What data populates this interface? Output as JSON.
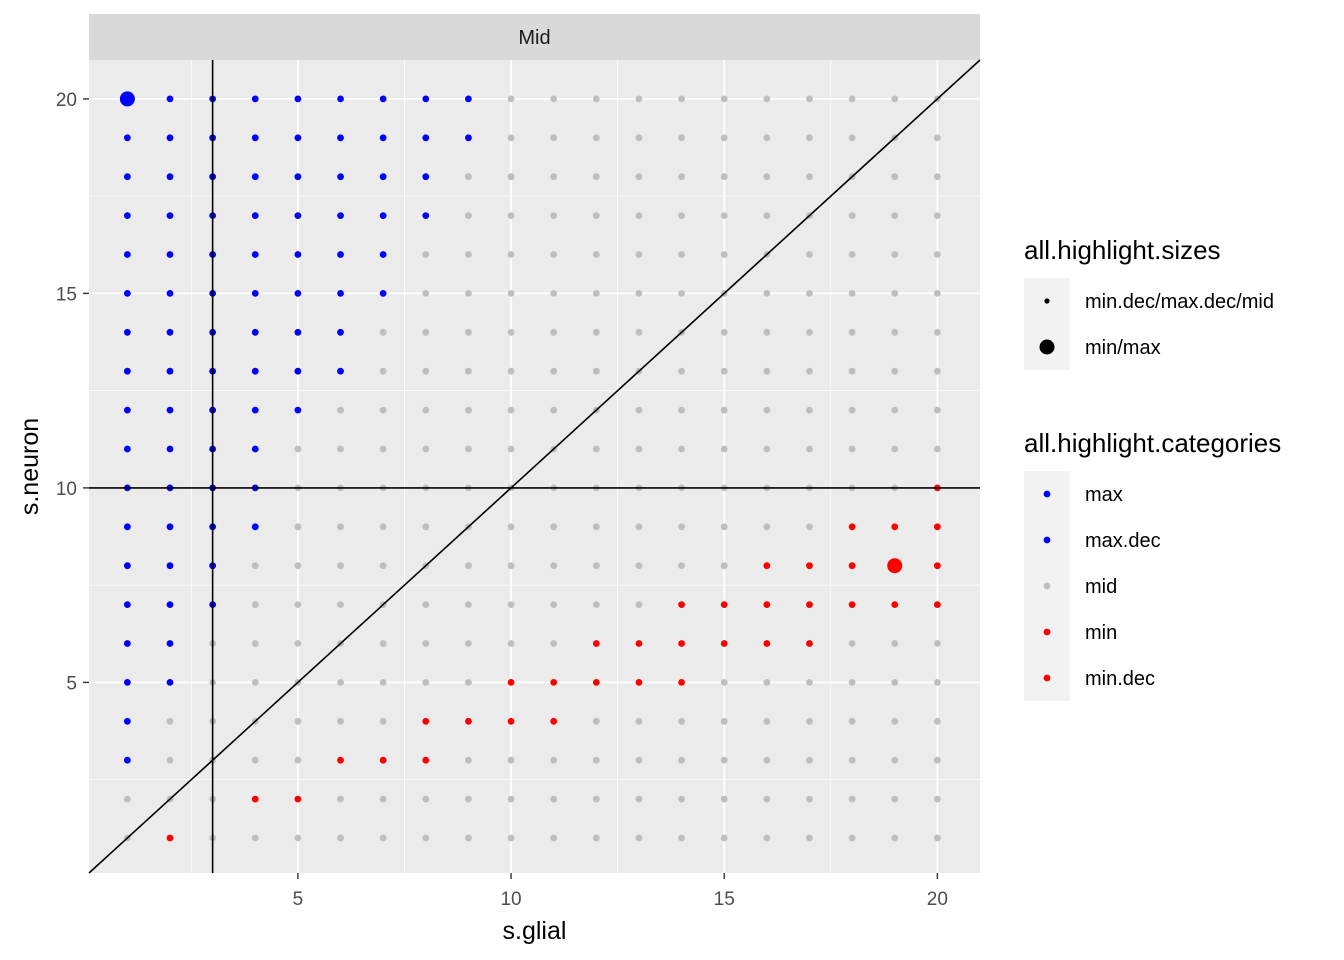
{
  "chart_data": {
    "type": "scatter",
    "facet_label": "Mid",
    "xlabel": "s.glial",
    "ylabel": "s.neuron",
    "xlim": [
      0.1,
      21
    ],
    "ylim": [
      0.1,
      21
    ],
    "x_ticks": [
      5,
      10,
      15,
      20
    ],
    "y_ticks": [
      5,
      10,
      15,
      20
    ],
    "grid": true,
    "reference_lines": {
      "vertical_x": 3,
      "horizontal_y": 10,
      "diagonal": "y = x"
    },
    "grid_range": {
      "x_min": 1,
      "x_max": 20,
      "y_min": 1,
      "y_max": 20
    },
    "default_category": "mid",
    "max_columns_by_row": {
      "20": 9,
      "19": 9,
      "18": 8,
      "17": 8,
      "16": 7,
      "15": 7,
      "14": 6,
      "13": 6,
      "12": 5,
      "11": 4,
      "10": 4,
      "9": 4,
      "8": 3,
      "7": 3,
      "6": 2,
      "5": 2,
      "4": 1,
      "3": 1
    },
    "min_points": [
      [
        2,
        1
      ],
      [
        4,
        2
      ],
      [
        5,
        2
      ],
      [
        6,
        3
      ],
      [
        7,
        3
      ],
      [
        8,
        3
      ],
      [
        8,
        4
      ],
      [
        9,
        4
      ],
      [
        10,
        4
      ],
      [
        11,
        4
      ],
      [
        10,
        5
      ],
      [
        11,
        5
      ],
      [
        12,
        5
      ],
      [
        13,
        5
      ],
      [
        14,
        5
      ],
      [
        12,
        6
      ],
      [
        13,
        6
      ],
      [
        14,
        6
      ],
      [
        15,
        6
      ],
      [
        16,
        6
      ],
      [
        17,
        6
      ],
      [
        14,
        7
      ],
      [
        15,
        7
      ],
      [
        16,
        7
      ],
      [
        17,
        7
      ],
      [
        18,
        7
      ],
      [
        19,
        7
      ],
      [
        20,
        7
      ],
      [
        16,
        8
      ],
      [
        17,
        8
      ],
      [
        18,
        8
      ],
      [
        20,
        8
      ],
      [
        18,
        9
      ],
      [
        19,
        9
      ],
      [
        20,
        9
      ],
      [
        20,
        10
      ]
    ],
    "highlight_points": [
      {
        "x": 1,
        "y": 20,
        "category": "max",
        "size": "min/max"
      },
      {
        "x": 19,
        "y": 8,
        "category": "min",
        "size": "min/max"
      }
    ],
    "colors": {
      "max": "#0000FF",
      "max.dec": "#0000FF",
      "mid": "#BEBEBE",
      "min": "#FF0000",
      "min.dec": "#FF0000"
    },
    "legend_position": "right",
    "legends": [
      {
        "title": "all.highlight.sizes",
        "entries": [
          "min.dec/max.dec/mid",
          "min/max"
        ]
      },
      {
        "title": "all.highlight.categories",
        "entries": [
          "max",
          "max.dec",
          "mid",
          "min",
          "min.dec"
        ]
      }
    ]
  }
}
